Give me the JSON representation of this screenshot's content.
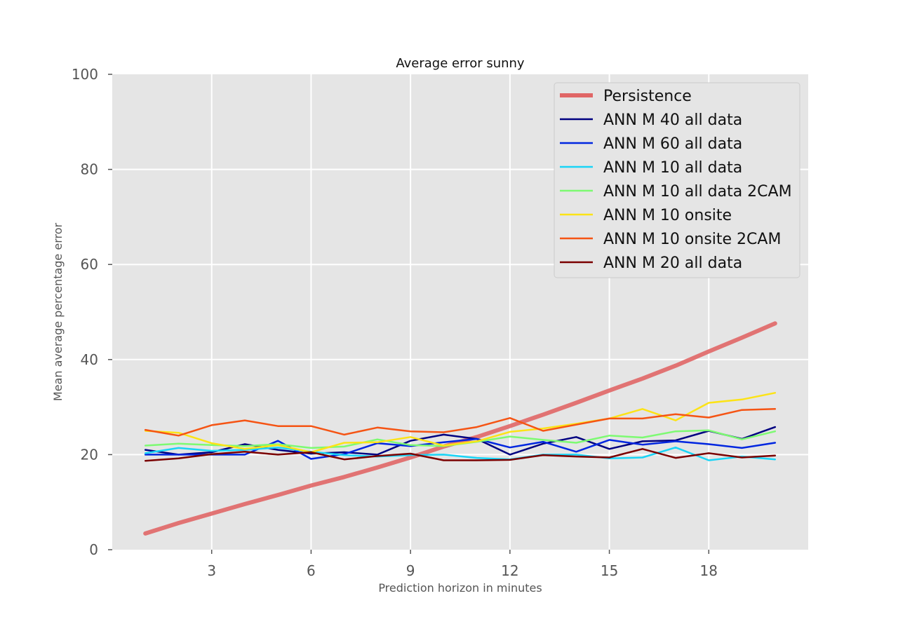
{
  "chart_data": {
    "type": "line",
    "title": "Average error sunny",
    "xlabel": "Prediction horizon in minutes",
    "ylabel": "Mean average percentage error",
    "xlim": [
      0,
      21
    ],
    "ylim": [
      0,
      100
    ],
    "xticks": [
      3,
      6,
      9,
      12,
      15,
      18
    ],
    "yticks": [
      0,
      20,
      40,
      60,
      80,
      100
    ],
    "grid": true,
    "legend": "top-right",
    "x": [
      1,
      2,
      3,
      4,
      5,
      6,
      7,
      8,
      9,
      10,
      11,
      12,
      13,
      14,
      15,
      16,
      17,
      18,
      19,
      20
    ],
    "series": [
      {
        "name": "Persistence",
        "color": "#e06666",
        "values": [
          3.4,
          5.6,
          7.6,
          9.6,
          11.5,
          13.5,
          15.3,
          17.3,
          19.4,
          21.7,
          23.7,
          26.0,
          28.4,
          30.9,
          33.5,
          36.0,
          38.7,
          41.7,
          44.6,
          47.6
        ]
      },
      {
        "name": "ANN M 40 all data",
        "color": "#000080",
        "values": [
          21.0,
          20.0,
          20.5,
          22.2,
          21.0,
          20.2,
          20.5,
          20.0,
          22.9,
          24.2,
          23.3,
          20.0,
          22.3,
          23.7,
          21.2,
          22.8,
          23.0,
          25.0,
          23.3,
          25.8
        ]
      },
      {
        "name": "ANN M 60 all data",
        "color": "#0026e0",
        "values": [
          20.0,
          20.0,
          20.0,
          20.0,
          22.9,
          19.1,
          20.1,
          22.4,
          21.8,
          22.6,
          23.3,
          21.5,
          22.7,
          20.6,
          23.1,
          22.1,
          22.8,
          22.2,
          21.4,
          22.5
        ]
      },
      {
        "name": "ANN M 10 all data",
        "color": "#19d4f6",
        "values": [
          20.3,
          21.4,
          20.8,
          21.0,
          21.5,
          20.6,
          19.9,
          19.6,
          19.9,
          20.0,
          19.3,
          19.0,
          20.0,
          20.0,
          19.2,
          19.4,
          21.5,
          18.8,
          19.6,
          19.0
        ]
      },
      {
        "name": "ANN M 10 all data 2CAM",
        "color": "#7dfa72",
        "values": [
          21.9,
          22.3,
          22.0,
          21.8,
          22.2,
          21.4,
          21.7,
          23.2,
          22.0,
          21.8,
          22.7,
          23.8,
          23.1,
          22.5,
          24.0,
          23.6,
          24.9,
          25.1,
          23.2,
          24.9
        ]
      },
      {
        "name": "ANN M 10 onsite",
        "color": "#fce316",
        "values": [
          25.0,
          24.6,
          22.4,
          21.2,
          22.0,
          20.5,
          22.5,
          22.6,
          23.7,
          21.9,
          22.8,
          24.8,
          25.5,
          26.5,
          27.6,
          29.6,
          27.2,
          30.9,
          31.6,
          33.0
        ]
      },
      {
        "name": "ANN M 10 onsite 2CAM",
        "color": "#f55414",
        "values": [
          25.2,
          24.0,
          26.2,
          27.2,
          26.0,
          26.0,
          24.2,
          25.7,
          24.9,
          24.7,
          25.8,
          27.7,
          25.0,
          26.3,
          27.6,
          27.6,
          28.5,
          27.8,
          29.4,
          29.6
        ]
      },
      {
        "name": "ANN M 20 all data",
        "color": "#7a0000",
        "values": [
          18.7,
          19.2,
          20.1,
          20.6,
          20.0,
          20.5,
          19.0,
          19.7,
          20.2,
          18.8,
          18.8,
          18.9,
          19.9,
          19.6,
          19.4,
          21.2,
          19.3,
          20.3,
          19.4,
          19.8
        ]
      }
    ]
  }
}
